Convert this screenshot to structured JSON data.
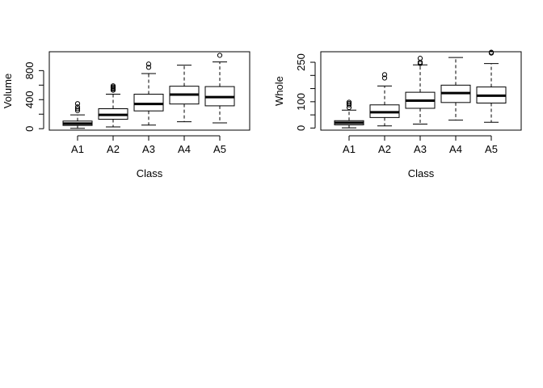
{
  "chart_data": [
    {
      "type": "boxplot",
      "xlabel": "Class",
      "ylabel": "Volume",
      "categories": [
        "A1",
        "A2",
        "A3",
        "A4",
        "A5"
      ],
      "ylim": [
        -20,
        1060
      ],
      "yticks": [
        0,
        400,
        800
      ],
      "yticks_minor": [
        200,
        600
      ],
      "boxes": [
        {
          "min": 5,
          "q1": 45,
          "median": 70,
          "q3": 105,
          "max": 190,
          "outliers": [
            250,
            275,
            300,
            345
          ]
        },
        {
          "min": 25,
          "q1": 130,
          "median": 190,
          "q3": 275,
          "max": 475,
          "outliers": [
            530,
            545,
            560,
            575,
            590
          ]
        },
        {
          "min": 50,
          "q1": 245,
          "median": 340,
          "q3": 475,
          "max": 760,
          "outliers": [
            845,
            890
          ]
        },
        {
          "min": 95,
          "q1": 340,
          "median": 470,
          "q3": 585,
          "max": 875,
          "outliers": []
        },
        {
          "min": 80,
          "q1": 315,
          "median": 435,
          "q3": 580,
          "max": 920,
          "outliers": [
            1010
          ]
        }
      ]
    },
    {
      "type": "boxplot",
      "xlabel": "Class",
      "ylabel": "Whole",
      "categories": [
        "A1",
        "A2",
        "A3",
        "A4",
        "A5"
      ],
      "ylim": [
        -8,
        290
      ],
      "yticks": [
        0,
        100,
        250
      ],
      "yticks_minor": [
        50,
        150,
        200
      ],
      "boxes": [
        {
          "min": 1,
          "q1": 12,
          "median": 20,
          "q3": 28,
          "max": 68,
          "outliers": [
            78,
            88,
            93,
            98
          ]
        },
        {
          "min": 8,
          "q1": 40,
          "median": 60,
          "q3": 88,
          "max": 160,
          "outliers": [
            190,
            203
          ]
        },
        {
          "min": 15,
          "q1": 75,
          "median": 104,
          "q3": 136,
          "max": 240,
          "outliers": [
            245,
            250,
            265
          ]
        },
        {
          "min": 30,
          "q1": 97,
          "median": 133,
          "q3": 163,
          "max": 268,
          "outliers": []
        },
        {
          "min": 22,
          "q1": 95,
          "median": 123,
          "q3": 156,
          "max": 245,
          "outliers": [
            285,
            288
          ]
        }
      ]
    }
  ]
}
